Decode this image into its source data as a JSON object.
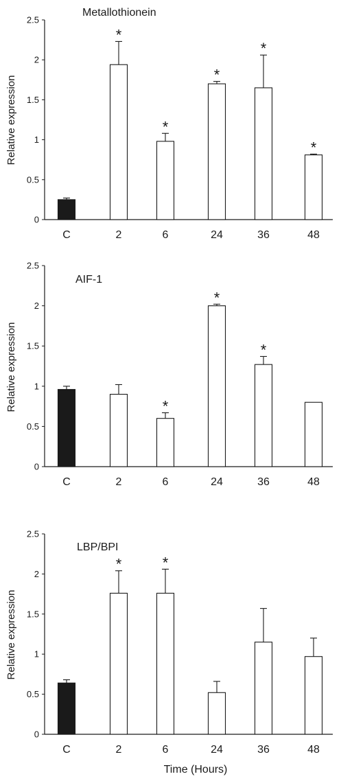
{
  "figure": {
    "xlabel": "Time (Hours)"
  },
  "chart_data": [
    {
      "type": "bar",
      "title": "Metallothionein",
      "xlabel": "",
      "ylabel": "Relative expression",
      "ylim": [
        0,
        2.5
      ],
      "yticks": [
        "0",
        "0.5",
        "1",
        "1.5",
        "2",
        "2.5"
      ],
      "categories": [
        "C",
        "2",
        "6",
        "24",
        "36",
        "48"
      ],
      "values": [
        0.25,
        1.94,
        0.98,
        1.7,
        1.65,
        0.81
      ],
      "errors": [
        0.02,
        0.29,
        0.1,
        0.03,
        0.41,
        0.01
      ],
      "significant": [
        false,
        true,
        true,
        true,
        true,
        true
      ],
      "marker": "*",
      "bar_colors": [
        "#1a1a1a",
        "#ffffff",
        "#ffffff",
        "#ffffff",
        "#ffffff",
        "#ffffff"
      ]
    },
    {
      "type": "bar",
      "title": "AIF-1",
      "xlabel": "",
      "ylabel": "Relative expression",
      "ylim": [
        0,
        2.5
      ],
      "yticks": [
        "0",
        "0.5",
        "1",
        "1.5",
        "2",
        "2.5"
      ],
      "categories": [
        "C",
        "2",
        "6",
        "24",
        "36",
        "48"
      ],
      "values": [
        0.96,
        0.9,
        0.6,
        2.0,
        1.27,
        0.8
      ],
      "errors": [
        0.04,
        0.12,
        0.07,
        0.02,
        0.1,
        0.0
      ],
      "significant": [
        false,
        false,
        true,
        true,
        true,
        false
      ],
      "marker": "*",
      "bar_colors": [
        "#1a1a1a",
        "#ffffff",
        "#ffffff",
        "#ffffff",
        "#ffffff",
        "#ffffff"
      ]
    },
    {
      "type": "bar",
      "title": "LBP/BPI",
      "xlabel": "Time (Hours)",
      "ylabel": "Relative expression",
      "ylim": [
        0,
        2.5
      ],
      "yticks": [
        "0",
        "0.5",
        "1",
        "1.5",
        "2",
        "2.5"
      ],
      "categories": [
        "C",
        "2",
        "6",
        "24",
        "36",
        "48"
      ],
      "values": [
        0.64,
        1.76,
        1.76,
        0.52,
        1.15,
        0.97
      ],
      "errors": [
        0.04,
        0.28,
        0.3,
        0.14,
        0.42,
        0.23
      ],
      "significant": [
        false,
        true,
        true,
        false,
        false,
        false
      ],
      "marker": "*",
      "bar_colors": [
        "#1a1a1a",
        "#ffffff",
        "#ffffff",
        "#ffffff",
        "#ffffff",
        "#ffffff"
      ]
    }
  ]
}
